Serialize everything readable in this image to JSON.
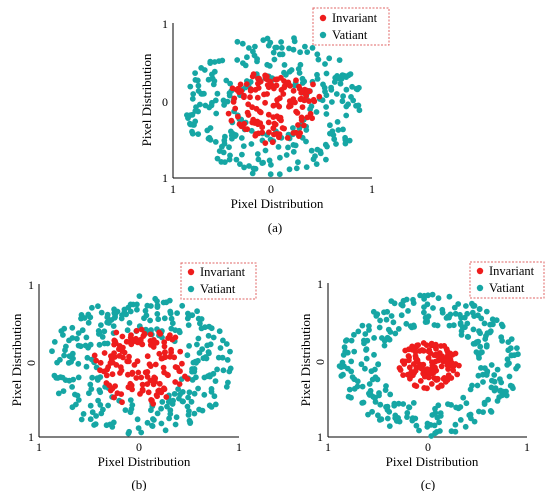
{
  "colors": {
    "invariant": "#ee1c1c",
    "variant": "#16a6a4",
    "legend_border": "#e06666",
    "axis": "#000000"
  },
  "chart_data": [
    {
      "panel_label": "(a)",
      "type": "scatter",
      "xlabel": "Pixel Distribution",
      "ylabel": "Pixel Distribution",
      "xticks": [
        "1",
        "0",
        "1"
      ],
      "yticks": [
        "1",
        "0",
        "1"
      ],
      "xlim": [
        -1,
        1
      ],
      "ylim": [
        -1,
        1
      ],
      "legend": {
        "position": "top-right",
        "entries": [
          "Invariant",
          "Vatiant"
        ]
      },
      "series": [
        {
          "name": "Invariant",
          "color": "#ee1c1c",
          "count": 140,
          "shape": "blob",
          "radius": 0.5,
          "seed": 11
        },
        {
          "name": "Vatiant",
          "color": "#16a6a4",
          "count": 280,
          "shape": "ring",
          "r_inner": 0.35,
          "r_outer": 1.0,
          "seed": 23
        }
      ]
    },
    {
      "panel_label": "(b)",
      "type": "scatter",
      "xlabel": "Pixel Distribution",
      "ylabel": "Pixel Distribution",
      "xticks": [
        "1",
        "0",
        "1"
      ],
      "yticks": [
        "1",
        "0",
        "1"
      ],
      "xlim": [
        -1,
        1
      ],
      "ylim": [
        -1,
        1
      ],
      "legend": {
        "position": "top-right",
        "entries": [
          "Invariant",
          "Vatiant"
        ]
      },
      "series": [
        {
          "name": "Invariant",
          "color": "#ee1c1c",
          "count": 150,
          "shape": "blob",
          "radius": 0.52,
          "seed": 37
        },
        {
          "name": "Vatiant",
          "color": "#16a6a4",
          "count": 290,
          "shape": "ring",
          "r_inner": 0.45,
          "r_outer": 1.0,
          "seed": 41
        }
      ]
    },
    {
      "panel_label": "(c)",
      "type": "scatter",
      "xlabel": "Pixel Distribution",
      "ylabel": "Pixel Distribution",
      "xticks": [
        "1",
        "0",
        "1"
      ],
      "yticks": [
        "1",
        "0",
        "1"
      ],
      "xlim": [
        -1,
        1
      ],
      "ylim": [
        -1,
        1
      ],
      "legend": {
        "position": "top-right",
        "entries": [
          "Invariant",
          "Vatiant"
        ]
      },
      "series": [
        {
          "name": "Invariant",
          "color": "#ee1c1c",
          "count": 130,
          "shape": "disc",
          "radius": 0.34,
          "seed": 53
        },
        {
          "name": "Vatiant",
          "color": "#16a6a4",
          "count": 300,
          "shape": "ring",
          "r_inner": 0.55,
          "r_outer": 1.0,
          "seed": 67
        }
      ]
    }
  ]
}
